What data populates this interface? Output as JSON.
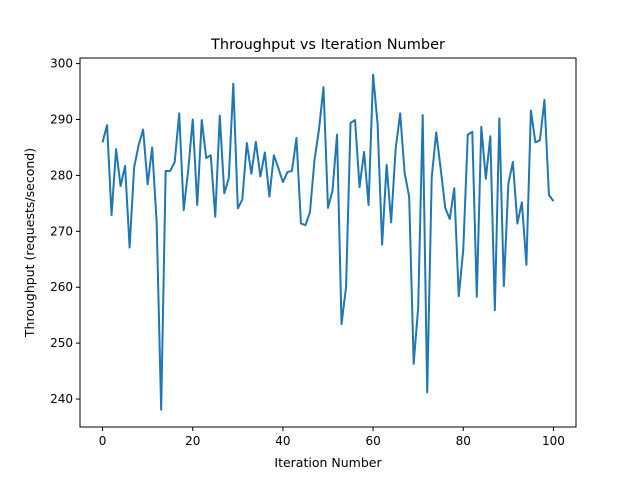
{
  "chart_data": {
    "type": "line",
    "title": "Throughput vs Iteration Number",
    "xlabel": "Iteration Number",
    "ylabel": "Throughput (requests/second)",
    "xlim": [
      -5,
      105
    ],
    "ylim": [
      235,
      301
    ],
    "xticks": [
      0,
      20,
      40,
      60,
      80,
      100
    ],
    "yticks": [
      240,
      250,
      260,
      270,
      280,
      290,
      300
    ],
    "grid": false,
    "color": "#1f77b4",
    "series": [
      {
        "x": [
          0,
          1,
          2,
          3,
          4,
          5,
          6,
          7,
          8,
          9,
          10,
          11,
          12,
          13,
          14,
          15,
          16,
          17,
          18,
          19,
          20,
          21,
          22,
          23,
          24,
          25,
          26,
          27,
          28,
          29,
          30,
          31,
          32,
          33,
          34,
          35,
          36,
          37,
          38,
          39,
          40,
          41,
          42,
          43,
          44,
          45,
          46,
          47,
          48,
          49,
          50,
          51,
          52,
          53,
          54,
          55,
          56,
          57,
          58,
          59,
          60,
          61,
          62,
          63,
          64,
          65,
          66,
          67,
          68,
          69,
          70,
          71,
          72,
          73,
          74,
          75,
          76,
          77,
          78,
          79,
          80,
          81,
          82,
          83,
          84,
          85,
          86,
          87,
          88,
          89,
          90,
          91,
          92,
          93,
          94,
          95,
          96,
          97,
          98,
          99,
          100
        ],
        "values": [
          285.9,
          289.0,
          272.9,
          284.7,
          278.1,
          281.7,
          267.1,
          281.4,
          285.4,
          288.2,
          278.4,
          285.0,
          271.6,
          238.1,
          280.8,
          280.8,
          282.4,
          291.1,
          273.8,
          281.0,
          290.0,
          274.7,
          289.9,
          283.1,
          283.6,
          272.6,
          290.7,
          276.8,
          279.5,
          296.4,
          274.1,
          275.7,
          285.8,
          280.3,
          286.0,
          279.8,
          284.1,
          276.2,
          283.6,
          281.3,
          278.8,
          280.6,
          280.8,
          286.7,
          271.4,
          271.1,
          273.4,
          282.7,
          288.2,
          295.8,
          274.2,
          277.3,
          287.3,
          253.4,
          260.0,
          289.4,
          289.9,
          277.9,
          284.2,
          274.7,
          298.0,
          289.2,
          267.6,
          281.9,
          271.6,
          284.7,
          291.1,
          280.4,
          276.2,
          246.3,
          256.4,
          290.8,
          241.2,
          279.6,
          287.7,
          281.1,
          274.2,
          272.2,
          277.7,
          258.4,
          266.7,
          287.3,
          287.8,
          258.3,
          288.7,
          279.4,
          287.0,
          255.9,
          290.2,
          260.2,
          278.5,
          282.4,
          271.4,
          275.2,
          264.0,
          291.6,
          285.9,
          286.3,
          293.5,
          276.5,
          275.4
        ]
      }
    ]
  }
}
